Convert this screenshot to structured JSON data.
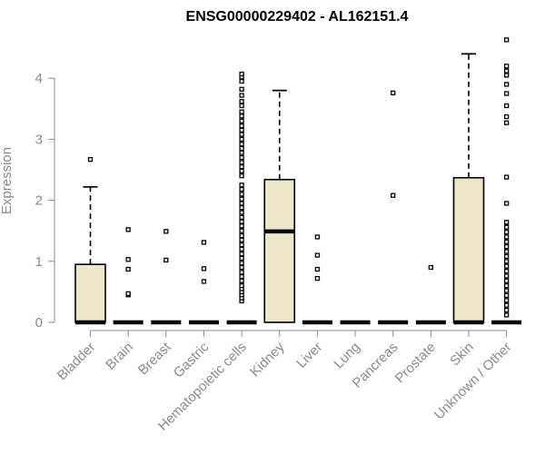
{
  "chart_data": {
    "type": "boxplot",
    "title": "ENSG00000229402 - AL162151.4",
    "ylabel": "Expression",
    "xlabel": "",
    "ylim": [
      0,
      4.7
    ],
    "yticks": [
      0,
      1,
      2,
      3,
      4
    ],
    "grid": false,
    "colors": {
      "box_fill": "#ede6cc",
      "stroke": "#000000",
      "axis": "#8a8a8a"
    },
    "categories": [
      "Bladder",
      "Brain",
      "Breast",
      "Gastric",
      "Hematopoietic cells",
      "Kidney",
      "Liver",
      "Lung",
      "Pancreas",
      "Prostate",
      "Skin",
      "Unknown / Other"
    ],
    "boxes": [
      {
        "q1": 0,
        "median": 0,
        "q3": 0.95,
        "whisker_high": 2.22,
        "outliers": [
          2.67
        ]
      },
      {
        "q1": 0,
        "median": 0,
        "q3": 0,
        "whisker_high": 0,
        "outliers": [
          0.45,
          0.47,
          0.87,
          1.03,
          1.52
        ]
      },
      {
        "q1": 0,
        "median": 0,
        "q3": 0,
        "whisker_high": 0,
        "outliers": [
          1.02,
          1.49
        ]
      },
      {
        "q1": 0,
        "median": 0,
        "q3": 0,
        "whisker_high": 0,
        "outliers": [
          0.67,
          0.88,
          1.31
        ]
      },
      {
        "q1": 0,
        "median": 0,
        "q3": 0,
        "whisker_high": 0,
        "outliers": [
          0.35,
          0.4,
          0.45,
          0.5,
          0.55,
          0.6,
          0.68,
          0.75,
          0.82,
          0.9,
          0.97,
          1.05,
          1.12,
          1.2,
          1.27,
          1.35,
          1.42,
          1.5,
          1.58,
          1.65,
          1.72,
          1.8,
          1.88,
          1.95,
          2.02,
          2.1,
          2.18,
          2.25,
          2.4,
          2.48,
          2.55,
          2.62,
          2.7,
          2.78,
          2.85,
          2.92,
          3.0,
          3.08,
          3.15,
          3.22,
          3.3,
          3.38,
          3.45,
          3.55,
          3.62,
          3.72,
          3.82,
          3.95,
          4.02,
          4.07
        ]
      },
      {
        "q1": 0,
        "median": 1.49,
        "q3": 2.34,
        "whisker_high": 3.8,
        "outliers": []
      },
      {
        "q1": 0,
        "median": 0,
        "q3": 0,
        "whisker_high": 0,
        "outliers": [
          0.72,
          0.87,
          1.1,
          1.4
        ]
      },
      {
        "q1": 0,
        "median": 0,
        "q3": 0,
        "whisker_high": 0,
        "outliers": []
      },
      {
        "q1": 0,
        "median": 0,
        "q3": 0,
        "whisker_high": 0,
        "outliers": [
          2.08,
          3.76
        ]
      },
      {
        "q1": 0,
        "median": 0,
        "q3": 0,
        "whisker_high": 0,
        "outliers": [
          0.9
        ]
      },
      {
        "q1": 0,
        "median": 0,
        "q3": 2.37,
        "whisker_high": 4.4,
        "outliers": []
      },
      {
        "q1": 0,
        "median": 0,
        "q3": 0,
        "whisker_high": 0,
        "outliers": [
          0.12,
          0.2,
          0.28,
          0.36,
          0.44,
          0.52,
          0.6,
          0.68,
          0.76,
          0.84,
          0.92,
          1.0,
          1.08,
          1.16,
          1.24,
          1.32,
          1.4,
          1.48,
          1.56,
          1.64,
          1.95,
          2.38,
          3.27,
          3.37,
          3.55,
          3.75,
          3.9,
          4.05,
          4.12,
          4.2,
          4.63
        ]
      }
    ]
  }
}
